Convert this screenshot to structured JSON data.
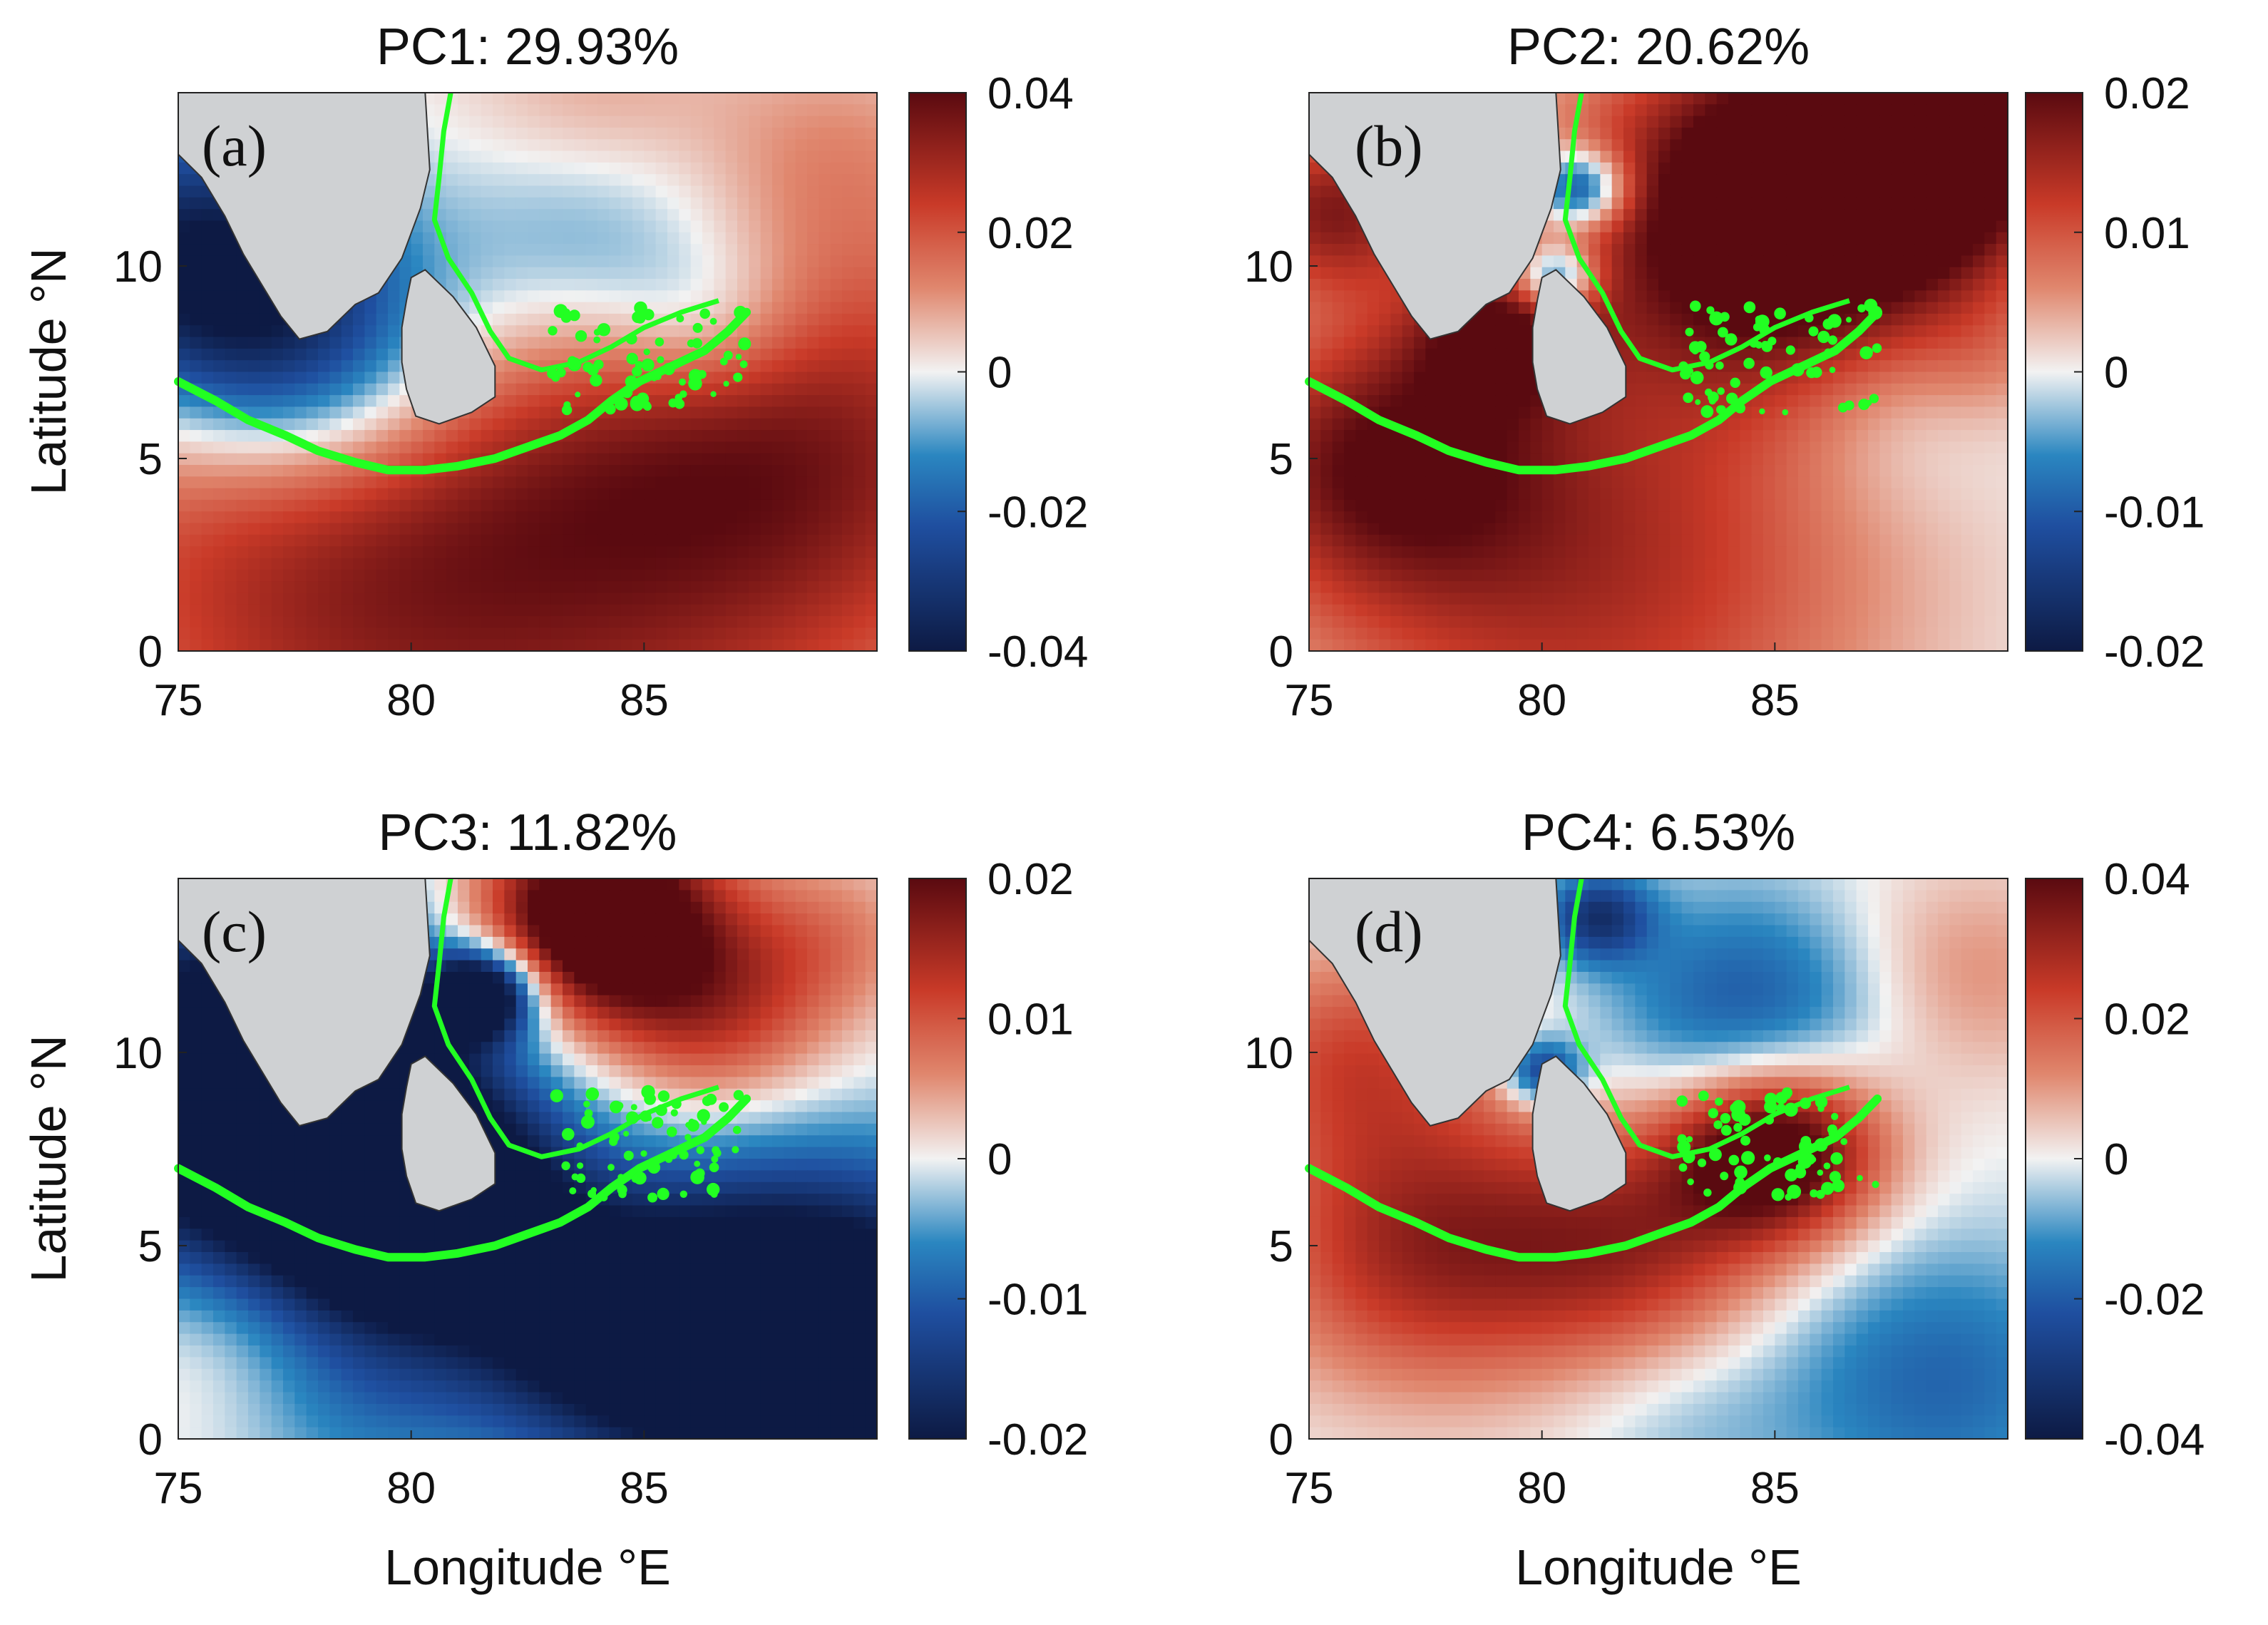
{
  "figure": {
    "xlabel": "Longitude °E",
    "ylabel": "Latitude °N"
  },
  "colors": {
    "positive_extreme": "#5a0a10",
    "positive": "#c93a28",
    "neutral": "#f2f2f2",
    "negative": "#2a86c0",
    "negative_extreme": "#0d1a44",
    "land": "#cfd1d3",
    "contour": "#22ff22"
  },
  "chart_data": [
    {
      "type": "heatmap",
      "panel_label": "(a)",
      "title": "PC1: 29.93%",
      "xlabel": "",
      "ylabel": "Latitude °N",
      "xlim": [
        75,
        90
      ],
      "ylim": [
        0,
        14.5
      ],
      "x_ticks": [
        "75",
        "80",
        "85"
      ],
      "y_ticks": [
        "0",
        "5",
        "10"
      ],
      "colorbar": {
        "range": [
          -0.04,
          0.04
        ],
        "tick_labels": [
          "0.04",
          "0.02",
          "0",
          "-0.02",
          "-0.04"
        ]
      },
      "field_description": "positive south of 5N, negative Arabian Sea west coast and Bay of Bengal interior",
      "features": [
        {
          "lon": 83.0,
          "lat": 2.0,
          "value": 0.022,
          "spread": 6
        },
        {
          "lon": 78.0,
          "lat": 2.5,
          "value": 0.018,
          "spread": 5
        },
        {
          "lon": 88.5,
          "lat": 5.5,
          "value": 0.024,
          "spread": 4
        },
        {
          "lon": 75.5,
          "lat": 10.0,
          "value": -0.045,
          "spread": 2.5
        },
        {
          "lon": 78.0,
          "lat": 7.5,
          "value": -0.03,
          "spread": 2.4
        },
        {
          "lon": 84.0,
          "lat": 10.5,
          "value": -0.022,
          "spread": 2.6
        },
        {
          "lon": 86.5,
          "lat": 8.5,
          "value": -0.012,
          "spread": 1.5
        },
        {
          "lon": 81.2,
          "lat": 13.0,
          "value": 0.0,
          "spread": 1.2
        },
        {
          "lon": 84.0,
          "lat": 14.0,
          "value": 0.01,
          "spread": 2
        },
        {
          "lon": 89.0,
          "lat": 13.0,
          "value": 0.008,
          "spread": 2
        }
      ]
    },
    {
      "type": "heatmap",
      "panel_label": "(b)",
      "title": "PC2: 20.62%",
      "xlabel": "",
      "ylabel": "",
      "xlim": [
        75,
        90
      ],
      "ylim": [
        0,
        14.5
      ],
      "x_ticks": [
        "75",
        "80",
        "85"
      ],
      "y_ticks": [
        "0",
        "5",
        "10"
      ],
      "colorbar": {
        "range": [
          -0.02,
          0.02
        ],
        "tick_labels": [
          "0.02",
          "0.01",
          "0",
          "-0.01",
          "-0.02"
        ]
      },
      "field_description": "strong positive northern Bay of Bengal, moderate positive elsewhere, neutral band near 6-7N",
      "features": [
        {
          "lon": 85.5,
          "lat": 11.5,
          "value": 0.03,
          "spread": 3.2
        },
        {
          "lon": 88.5,
          "lat": 13.5,
          "value": 0.02,
          "spread": 2
        },
        {
          "lon": 81.0,
          "lat": 2.0,
          "value": 0.014,
          "spread": 4.5
        },
        {
          "lon": 76.5,
          "lat": 5.0,
          "value": 0.015,
          "spread": 2.5
        },
        {
          "lon": 79.0,
          "lat": 8.2,
          "value": 0.013,
          "spread": 1.3
        },
        {
          "lon": 75.5,
          "lat": 11.5,
          "value": 0.016,
          "spread": 1.5
        },
        {
          "lon": 87.5,
          "lat": 6.5,
          "value": -0.005,
          "spread": 2.0
        },
        {
          "lon": 80.8,
          "lat": 12.0,
          "value": -0.02,
          "spread": 0.7
        },
        {
          "lon": 80.3,
          "lat": 9.7,
          "value": -0.018,
          "spread": 0.6
        },
        {
          "lon": 89.5,
          "lat": 7.5,
          "value": 0.003,
          "spread": 1.2
        }
      ]
    },
    {
      "type": "heatmap",
      "panel_label": "(c)",
      "title": "PC3: 11.82%",
      "xlabel": "Longitude °E",
      "ylabel": "Latitude °N",
      "xlim": [
        75,
        90
      ],
      "ylim": [
        0,
        14.5
      ],
      "x_ticks": [
        "75",
        "80",
        "85"
      ],
      "y_ticks": [
        "0",
        "5",
        "10"
      ],
      "colorbar": {
        "range": [
          -0.02,
          0.02
        ],
        "tick_labels": [
          "0.02",
          "0.01",
          "0",
          "-0.01",
          "-0.02"
        ]
      },
      "field_description": "strong negative west and south-east, strong positive north-central Bay of Bengal",
      "features": [
        {
          "lon": 76.5,
          "lat": 9.0,
          "value": -0.035,
          "spread": 3.2
        },
        {
          "lon": 80.0,
          "lat": 6.0,
          "value": -0.03,
          "spread": 2.2
        },
        {
          "lon": 88.5,
          "lat": 2.5,
          "value": -0.035,
          "spread": 3.0
        },
        {
          "lon": 84.0,
          "lat": 3.0,
          "value": -0.018,
          "spread": 2.2
        },
        {
          "lon": 81.5,
          "lat": 11.5,
          "value": -0.03,
          "spread": 0.8
        },
        {
          "lon": 84.0,
          "lat": 13.5,
          "value": 0.03,
          "spread": 1.8
        },
        {
          "lon": 86.5,
          "lat": 11.0,
          "value": 0.012,
          "spread": 1.8
        },
        {
          "lon": 89.0,
          "lat": 13.0,
          "value": 0.006,
          "spread": 1.5
        },
        {
          "lon": 76.0,
          "lat": 3.0,
          "value": 0.004,
          "spread": 2.0
        },
        {
          "lon": 79.0,
          "lat": 1.0,
          "value": -0.006,
          "spread": 2.0
        }
      ]
    },
    {
      "type": "heatmap",
      "panel_label": "(d)",
      "title": "PC4: 6.53%",
      "xlabel": "Longitude °E",
      "ylabel": "",
      "xlim": [
        75,
        90
      ],
      "ylim": [
        0,
        14.5
      ],
      "x_ticks": [
        "75",
        "80",
        "85"
      ],
      "y_ticks": [
        "0",
        "5",
        "10"
      ],
      "colorbar": {
        "range": [
          -0.04,
          0.04
        ],
        "tick_labels": [
          "0.04",
          "0.02",
          "0",
          "-0.02",
          "-0.04"
        ]
      },
      "field_description": "strong positive core near 85E 7.5N, negative central Bay of Bengal and south-east corner",
      "features": [
        {
          "lon": 85.0,
          "lat": 7.5,
          "value": 0.05,
          "spread": 1.6
        },
        {
          "lon": 77.5,
          "lat": 5.0,
          "value": 0.03,
          "spread": 2.6
        },
        {
          "lon": 82.0,
          "lat": 5.0,
          "value": 0.025,
          "spread": 2.2
        },
        {
          "lon": 76.0,
          "lat": 10.0,
          "value": 0.02,
          "spread": 2.0
        },
        {
          "lon": 89.0,
          "lat": 12.0,
          "value": 0.012,
          "spread": 2.0
        },
        {
          "lon": 84.5,
          "lat": 11.0,
          "value": -0.022,
          "spread": 2.2
        },
        {
          "lon": 81.2,
          "lat": 13.5,
          "value": -0.03,
          "spread": 0.8
        },
        {
          "lon": 80.0,
          "lat": 9.5,
          "value": -0.03,
          "spread": 0.6
        },
        {
          "lon": 88.5,
          "lat": 1.5,
          "value": -0.018,
          "spread": 2.5
        },
        {
          "lon": 83.0,
          "lat": 0.5,
          "value": -0.006,
          "spread": 1.8
        }
      ]
    }
  ]
}
